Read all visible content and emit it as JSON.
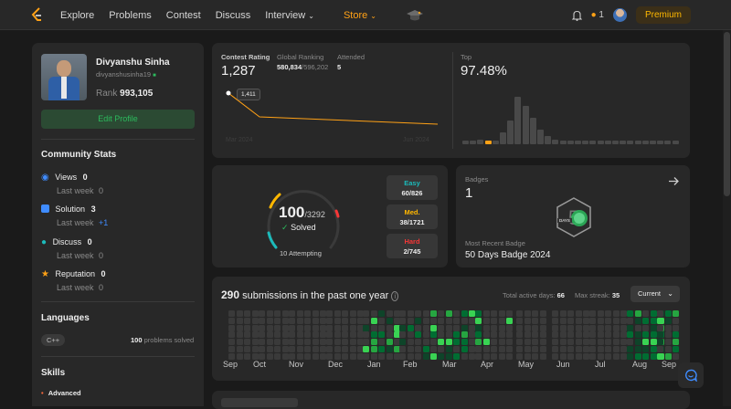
{
  "nav": {
    "explore": "Explore",
    "problems": "Problems",
    "contest": "Contest",
    "discuss": "Discuss",
    "interview": "Interview",
    "store": "Store"
  },
  "topbar": {
    "streak": "1",
    "premium": "Premium"
  },
  "profile": {
    "name": "Divyanshu Sinha",
    "username": "divyanshusinha19",
    "rank_label": "Rank",
    "rank": "993,105",
    "edit": "Edit Profile",
    "community_title": "Community Stats",
    "stats": [
      {
        "label": "Views",
        "value": "0",
        "sub": "Last week",
        "delta": "0"
      },
      {
        "label": "Solution",
        "value": "3",
        "sub": "Last week",
        "delta": "+1"
      },
      {
        "label": "Discuss",
        "value": "0",
        "sub": "Last week",
        "delta": "0"
      },
      {
        "label": "Reputation",
        "value": "0",
        "sub": "Last week",
        "delta": "0"
      }
    ],
    "languages_title": "Languages",
    "lang": "C++",
    "lang_count": "100",
    "lang_suffix": "problems solved",
    "skills_title": "Skills",
    "skill_level": "Advanced"
  },
  "contest": {
    "rating_label": "Contest Rating",
    "rating": "1,287",
    "global_label": "Global Ranking",
    "global": "580,834",
    "global_total": "/596,202",
    "attended_label": "Attended",
    "attended": "5",
    "tooltip": "1,411",
    "date_start": "Mar 2024",
    "date_end": "Jun 2024",
    "top_label": "Top",
    "top": "97.48%",
    "histogram": [
      0,
      0,
      0.1,
      0.02,
      0.08,
      0.25,
      0.5,
      1,
      0.8,
      0.55,
      0.3,
      0.18,
      0.1,
      0.08,
      0.07,
      0.06,
      0.05,
      0.04,
      0.04,
      0.03,
      0.03,
      0.02,
      0.02,
      0.02,
      0.02,
      0.02,
      0.02,
      0.02,
      0.01
    ],
    "histogram_highlight": 3
  },
  "solved": {
    "count": "100",
    "total": "/3292",
    "label": "Solved",
    "attempting": "10 Attempting",
    "easy_label": "Easy",
    "easy": "60/826",
    "med_label": "Med.",
    "med": "38/1721",
    "hard_label": "Hard",
    "hard": "2/745",
    "colors": {
      "easy": "#1cbaba",
      "med": "#ffb700",
      "hard": "#f63737"
    }
  },
  "badges": {
    "label": "Badges",
    "count": "1",
    "recent_label": "Most Recent Badge",
    "recent": "50 Days Badge 2024",
    "badge_text": "DAYS"
  },
  "subs": {
    "count": "290",
    "text": "submissions in the past one year",
    "active_label": "Total active days:",
    "active": "66",
    "streak_label": "Max streak:",
    "streak": "35",
    "select": "Current",
    "months": [
      "Sep",
      "Oct",
      "Nov",
      "Dec",
      "Jan",
      "Feb",
      "Mar",
      "Apr",
      "May",
      "Jun",
      "Jul",
      "Aug",
      "Sep"
    ]
  }
}
